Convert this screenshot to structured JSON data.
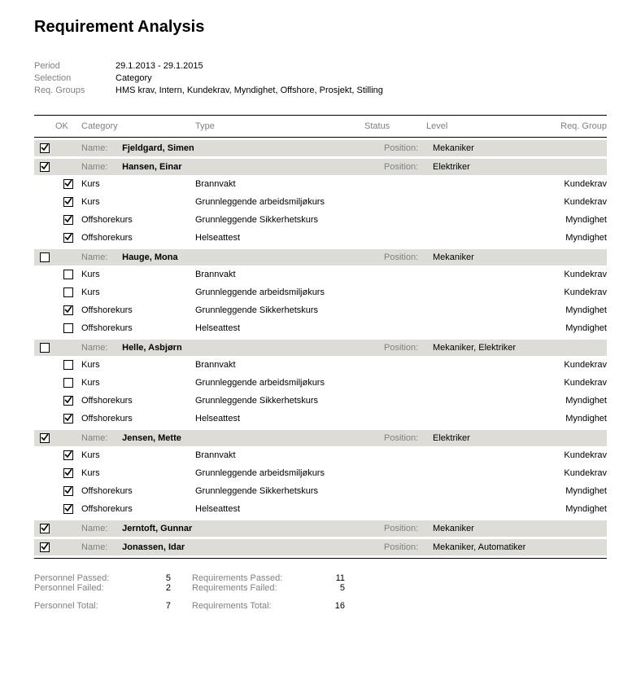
{
  "title": "Requirement Analysis",
  "meta": [
    {
      "label": "Period",
      "value": "29.1.2013 - 29.1.2015"
    },
    {
      "label": "Selection",
      "value": "Category"
    },
    {
      "label": "Req. Groups",
      "value": "HMS krav, Intern, Kundekrav, Myndighet, Offshore, Prosjekt, Stilling"
    }
  ],
  "columns": {
    "ok": "OK",
    "category": "Category",
    "type": "Type",
    "status": "Status",
    "level": "Level",
    "group": "Req. Group"
  },
  "name_label": "Name:",
  "position_label": "Position:",
  "groups": [
    {
      "ok": true,
      "name": "Fjeldgard, Simen",
      "position": "Mekaniker",
      "rows": []
    },
    {
      "ok": true,
      "name": "Hansen, Einar",
      "position": "Elektriker",
      "rows": [
        {
          "ok": true,
          "category": "Kurs",
          "type": "Brannvakt",
          "group": "Kundekrav"
        },
        {
          "ok": true,
          "category": "Kurs",
          "type": "Grunnleggende arbeidsmiljøkurs",
          "group": "Kundekrav"
        },
        {
          "ok": true,
          "category": "Offshorekurs",
          "type": "Grunnleggende Sikkerhetskurs",
          "group": "Myndighet"
        },
        {
          "ok": true,
          "category": "Offshorekurs",
          "type": "Helseattest",
          "group": "Myndighet"
        }
      ]
    },
    {
      "ok": false,
      "name": "Hauge, Mona",
      "position": "Mekaniker",
      "rows": [
        {
          "ok": false,
          "category": "Kurs",
          "type": "Brannvakt",
          "group": "Kundekrav"
        },
        {
          "ok": false,
          "category": "Kurs",
          "type": "Grunnleggende arbeidsmiljøkurs",
          "group": "Kundekrav"
        },
        {
          "ok": true,
          "category": "Offshorekurs",
          "type": "Grunnleggende Sikkerhetskurs",
          "group": "Myndighet"
        },
        {
          "ok": false,
          "category": "Offshorekurs",
          "type": "Helseattest",
          "group": "Myndighet"
        }
      ]
    },
    {
      "ok": false,
      "name": "Helle, Asbjørn",
      "position": "Mekaniker, Elektriker",
      "rows": [
        {
          "ok": false,
          "category": "Kurs",
          "type": "Brannvakt",
          "group": "Kundekrav"
        },
        {
          "ok": false,
          "category": "Kurs",
          "type": "Grunnleggende arbeidsmiljøkurs",
          "group": "Kundekrav"
        },
        {
          "ok": true,
          "category": "Offshorekurs",
          "type": "Grunnleggende Sikkerhetskurs",
          "group": "Myndighet"
        },
        {
          "ok": true,
          "category": "Offshorekurs",
          "type": "Helseattest",
          "group": "Myndighet"
        }
      ]
    },
    {
      "ok": true,
      "name": "Jensen, Mette",
      "position": "Elektriker",
      "rows": [
        {
          "ok": true,
          "category": "Kurs",
          "type": "Brannvakt",
          "group": "Kundekrav"
        },
        {
          "ok": true,
          "category": "Kurs",
          "type": "Grunnleggende arbeidsmiljøkurs",
          "group": "Kundekrav"
        },
        {
          "ok": true,
          "category": "Offshorekurs",
          "type": "Grunnleggende Sikkerhetskurs",
          "group": "Myndighet"
        },
        {
          "ok": true,
          "category": "Offshorekurs",
          "type": "Helseattest",
          "group": "Myndighet"
        }
      ]
    },
    {
      "ok": true,
      "name": "Jerntoft, Gunnar",
      "position": "Mekaniker",
      "rows": []
    },
    {
      "ok": true,
      "name": "Jonassen, Idar",
      "position": "Mekaniker, Automatiker",
      "rows": []
    }
  ],
  "summary": {
    "personnel_passed_label": "Personnel Passed:",
    "personnel_passed": "5",
    "personnel_failed_label": "Personnel Failed:",
    "personnel_failed": "2",
    "personnel_total_label": "Personnel Total:",
    "personnel_total": "7",
    "req_passed_label": "Requirements Passed:",
    "req_passed": "11",
    "req_failed_label": "Requirements Failed:",
    "req_failed": "5",
    "req_total_label": "Requirements Total:",
    "req_total": "16"
  },
  "colors": {
    "header_bg": "#dddcd7",
    "muted": "#808080",
    "rule": "#000000"
  }
}
